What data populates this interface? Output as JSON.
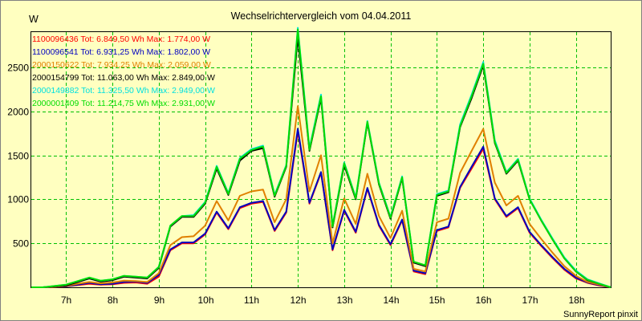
{
  "chart_data": {
    "type": "line",
    "title": "Wechselrichtervergleich vom 04.04.2011",
    "ylabel": "W",
    "xlabel": "",
    "ylim": [
      0,
      2900
    ],
    "yticks": [
      500,
      1000,
      1500,
      2000,
      2500
    ],
    "xlim": [
      6.25,
      18.75
    ],
    "xticks": [
      7,
      8,
      9,
      10,
      11,
      12,
      13,
      14,
      15,
      16,
      17,
      18
    ],
    "xtick_labels": [
      "7h",
      "8h",
      "9h",
      "10h",
      "11h",
      "12h",
      "13h",
      "14h",
      "15h",
      "16h",
      "17h",
      "18h"
    ],
    "grid": true,
    "footer": "SunnyReport pinxit",
    "x": [
      6.25,
      6.5,
      6.75,
      7.0,
      7.25,
      7.5,
      7.75,
      8.0,
      8.25,
      8.5,
      8.75,
      9.0,
      9.25,
      9.5,
      9.75,
      10.0,
      10.25,
      10.5,
      10.75,
      11.0,
      11.25,
      11.5,
      11.75,
      12.0,
      12.25,
      12.5,
      12.75,
      13.0,
      13.25,
      13.5,
      13.75,
      14.0,
      14.25,
      14.5,
      14.75,
      15.0,
      15.25,
      15.5,
      15.75,
      16.0,
      16.25,
      16.5,
      16.75,
      17.0,
      17.25,
      17.5,
      17.75,
      18.0,
      18.25,
      18.5,
      18.75
    ],
    "series": [
      {
        "name": "1100096436",
        "legend": "1100096436 Tot: 6.849,50 Wh Max: 1.774,00 W",
        "color": "#ff0000",
        "values": [
          0,
          0,
          5,
          10,
          25,
          40,
          30,
          35,
          50,
          55,
          40,
          120,
          420,
          500,
          500,
          600,
          850,
          660,
          900,
          950,
          970,
          640,
          850,
          1774,
          950,
          1300,
          420,
          870,
          620,
          1120,
          700,
          480,
          760,
          180,
          150,
          640,
          680,
          1130,
          1350,
          1574,
          1000,
          800,
          900,
          620,
          470,
          330,
          200,
          100,
          50,
          20,
          0
        ]
      },
      {
        "name": "1100096541",
        "legend": "1100096541 Tot: 6.931,25 Wh Max: 1.802,00 W",
        "color": "#0000c0",
        "values": [
          0,
          0,
          5,
          10,
          30,
          50,
          35,
          40,
          60,
          65,
          50,
          140,
          430,
          510,
          510,
          610,
          860,
          670,
          910,
          960,
          980,
          650,
          860,
          1802,
          960,
          1310,
          430,
          880,
          630,
          1130,
          710,
          490,
          770,
          190,
          160,
          650,
          690,
          1140,
          1370,
          1598,
          1010,
          810,
          910,
          630,
          480,
          340,
          210,
          110,
          55,
          25,
          0
        ]
      },
      {
        "name": "2000150622",
        "legend": "2000150622 Tot: 7.934,25 Wh Max: 2.059,00 W",
        "color": "#e08000",
        "values": [
          0,
          0,
          5,
          15,
          40,
          60,
          45,
          55,
          75,
          70,
          60,
          160,
          480,
          570,
          580,
          700,
          980,
          760,
          1040,
          1090,
          1110,
          740,
          1000,
          2059,
          1090,
          1500,
          500,
          1010,
          720,
          1290,
          810,
          560,
          870,
          210,
          180,
          740,
          780,
          1300,
          1550,
          1800,
          1190,
          930,
          1040,
          720,
          550,
          390,
          240,
          130,
          60,
          30,
          0
        ]
      },
      {
        "name": "2000154799",
        "legend": "2000154799 Tot: 11.063,00 Wh Max: 2.849,00 W",
        "color": "#000000",
        "values": [
          0,
          0,
          10,
          20,
          60,
          100,
          65,
          80,
          120,
          110,
          100,
          220,
          690,
          800,
          800,
          950,
          1350,
          1050,
          1440,
          1550,
          1580,
          1030,
          1370,
          2849,
          1550,
          2150,
          680,
          1390,
          1000,
          1870,
          1170,
          780,
          1240,
          280,
          240,
          1040,
          1080,
          1820,
          2150,
          2520,
          1640,
          1290,
          1440,
          1000,
          760,
          540,
          330,
          180,
          80,
          40,
          0
        ]
      },
      {
        "name": "2000149882",
        "legend": "2000149882 Tot: 11.325,50 Wh Max: 2.949,00 W",
        "color": "#00e0e0",
        "values": [
          0,
          0,
          15,
          30,
          70,
          110,
          75,
          90,
          130,
          120,
          110,
          230,
          700,
          810,
          820,
          970,
          1380,
          1070,
          1470,
          1570,
          1610,
          1050,
          1390,
          2949,
          1580,
          2190,
          700,
          1420,
          1020,
          1890,
          1190,
          800,
          1260,
          290,
          250,
          1060,
          1100,
          1850,
          2190,
          2560,
          1670,
          1310,
          1460,
          1010,
          770,
          550,
          340,
          190,
          90,
          45,
          0
        ]
      },
      {
        "name": "2000001409",
        "legend": "2000001409 Tot: 11.214,75 Wh Max: 2.931,00 W",
        "color": "#00dd00",
        "values": [
          0,
          0,
          15,
          30,
          70,
          110,
          75,
          90,
          130,
          120,
          110,
          230,
          700,
          810,
          810,
          960,
          1370,
          1060,
          1460,
          1560,
          1600,
          1040,
          1380,
          2931,
          1560,
          2170,
          690,
          1410,
          1010,
          1880,
          1180,
          790,
          1250,
          290,
          250,
          1050,
          1090,
          1830,
          2170,
          2540,
          1650,
          1300,
          1450,
          1000,
          760,
          540,
          330,
          180,
          85,
          40,
          0
        ]
      }
    ]
  }
}
